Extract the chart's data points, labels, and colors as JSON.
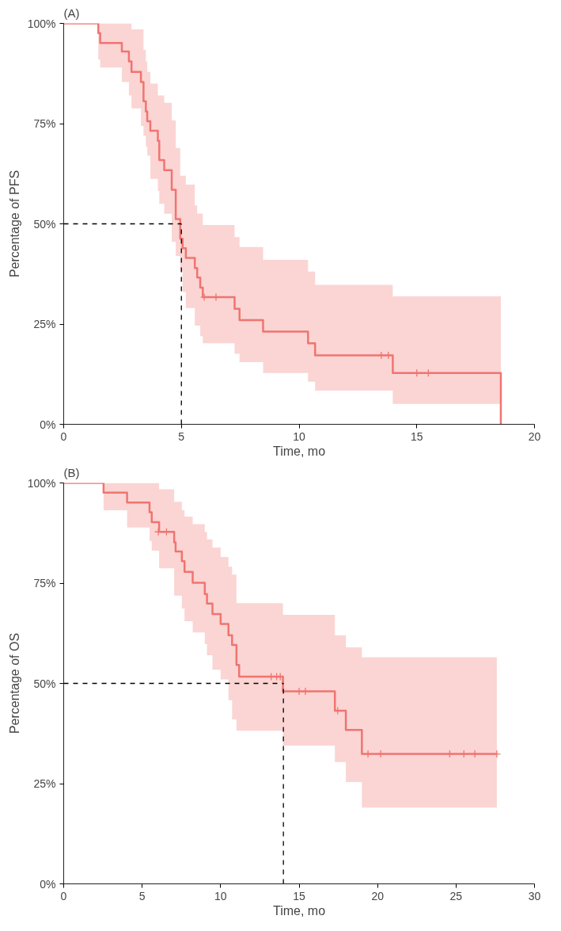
{
  "chart_data": [
    {
      "type": "step",
      "title": "(A)",
      "xlabel": "Time, mo",
      "ylabel": "Percentage of PFS",
      "xlim": [
        0,
        20
      ],
      "ylim": [
        0,
        100
      ],
      "xticks": [
        0,
        5,
        10,
        15,
        20
      ],
      "yticks": [
        {
          "value": 0,
          "label": "0%"
        },
        {
          "value": 25,
          "label": "25%"
        },
        {
          "value": 50,
          "label": "50%"
        },
        {
          "value": 75,
          "label": "75%"
        },
        {
          "value": 100,
          "label": "100%"
        }
      ],
      "line_style": "solid",
      "ref_lines": [
        {
          "axis": "y",
          "value": 50,
          "color": "#000000",
          "line_style": "dashed"
        },
        {
          "axis": "x",
          "value": 5,
          "color": "#000000",
          "line_style": "dashed"
        }
      ],
      "series": [
        {
          "color": "#f07470",
          "x": [
            0,
            1.47,
            1.55,
            2.47,
            2.77,
            2.88,
            3.28,
            3.39,
            3.49,
            3.55,
            3.68,
            4.0,
            4.06,
            4.27,
            4.59,
            4.76,
            4.95,
            5.05,
            5.19,
            5.57,
            5.67,
            5.8,
            5.91,
            7.26,
            7.47,
            8.47,
            10.38,
            10.68,
            13.98,
            18.57
          ],
          "values": [
            100,
            97.6,
            95.1,
            93.0,
            90.5,
            87.9,
            85.4,
            80.6,
            78.0,
            75.6,
            73.2,
            70.7,
            65.9,
            63.4,
            58.5,
            51.2,
            46.3,
            43.9,
            41.5,
            39.0,
            36.6,
            34.1,
            31.7,
            28.8,
            26.0,
            23.1,
            20.2,
            17.2,
            12.8,
            0
          ],
          "lower": [
            100,
            91,
            89,
            85.4,
            82,
            78.8,
            74.4,
            72,
            69.2,
            67,
            61.2,
            58.2,
            55,
            52.5,
            45.5,
            42,
            38.2,
            33,
            29.0,
            24.6,
            24.6,
            22,
            20.2,
            17.6,
            15.5,
            12.8,
            10.6,
            8.4,
            5.1,
            5.1
          ],
          "upper": [
            100,
            100,
            100,
            100,
            100,
            98.5,
            98.5,
            93.4,
            90.5,
            87.9,
            85,
            82.0,
            82.0,
            80.2,
            75.8,
            68.9,
            62.0,
            62.0,
            59.8,
            54.6,
            52.5,
            52.5,
            49.7,
            46.7,
            44.2,
            41,
            38.1,
            34.8,
            31.9,
            31.9
          ]
        },
        {
          "type": "scatter",
          "marker": "cross",
          "color": "#f07470",
          "x": [
            5.97,
            6.47,
            13.49,
            13.79,
            15.0,
            15.49
          ],
          "values": [
            31.7,
            31.7,
            17.2,
            17.2,
            12.8,
            12.8
          ]
        }
      ]
    },
    {
      "type": "step",
      "title": "(B)",
      "xlabel": "Time, mo",
      "ylabel": "Percentage of OS",
      "xlim": [
        0,
        30
      ],
      "ylim": [
        0,
        100
      ],
      "xticks": [
        0,
        5,
        10,
        15,
        20,
        25,
        30
      ],
      "yticks": [
        {
          "value": 0,
          "label": "0%"
        },
        {
          "value": 25,
          "label": "25%"
        },
        {
          "value": 50,
          "label": "50%"
        },
        {
          "value": 75,
          "label": "75%"
        },
        {
          "value": 100,
          "label": "100%"
        }
      ],
      "line_style": "solid",
      "ref_lines": [
        {
          "axis": "y",
          "value": 50,
          "color": "#000000",
          "line_style": "dashed"
        },
        {
          "axis": "x",
          "value": 14,
          "color": "#000000",
          "line_style": "dashed"
        }
      ],
      "series": [
        {
          "color": "#f07470",
          "x": [
            0,
            2.54,
            4.04,
            5.47,
            5.61,
            6.08,
            7.04,
            7.13,
            7.53,
            7.7,
            8.22,
            8.99,
            9.13,
            9.48,
            10.0,
            10.5,
            10.73,
            11.01,
            11.18,
            13.97,
            17.28,
            17.98,
            19.0,
            27.6
          ],
          "values": [
            100,
            97.6,
            95.1,
            92.7,
            90.2,
            87.8,
            85.2,
            82.9,
            80.5,
            77.8,
            75.1,
            72.3,
            69.9,
            67.3,
            64.8,
            62.0,
            59.6,
            54.6,
            51.7,
            48.0,
            43.2,
            38.4,
            32.4,
            32.4
          ],
          "lower": [
            100,
            93.2,
            88.9,
            85.5,
            83.1,
            78.7,
            71.9,
            71.9,
            68.7,
            65.5,
            62.7,
            59.8,
            57.0,
            53.4,
            51.0,
            45.8,
            41.0,
            38.2,
            38.2,
            34.5,
            30.4,
            25.4,
            19,
            19
          ],
          "upper": [
            100,
            100,
            100,
            100,
            100,
            98.4,
            95.3,
            95.3,
            93.2,
            91.6,
            89.7,
            87.8,
            85.9,
            83.9,
            81.5,
            79.1,
            77.1,
            70.0,
            70.0,
            67.1,
            62.0,
            59.0,
            56.5,
            56.5
          ]
        },
        {
          "type": "scatter",
          "marker": "cross",
          "color": "#f07470",
          "x": [
            6.03,
            6.55,
            13.22,
            13.57,
            13.8,
            15.0,
            15.4,
            17.46,
            19.39,
            20.2,
            24.6,
            25.5,
            26.2,
            27.6
          ],
          "values": [
            87.8,
            87.8,
            51.7,
            51.7,
            51.7,
            48.0,
            48.0,
            43.2,
            32.4,
            32.4,
            32.4,
            32.4,
            32.4,
            32.4
          ]
        }
      ]
    }
  ]
}
